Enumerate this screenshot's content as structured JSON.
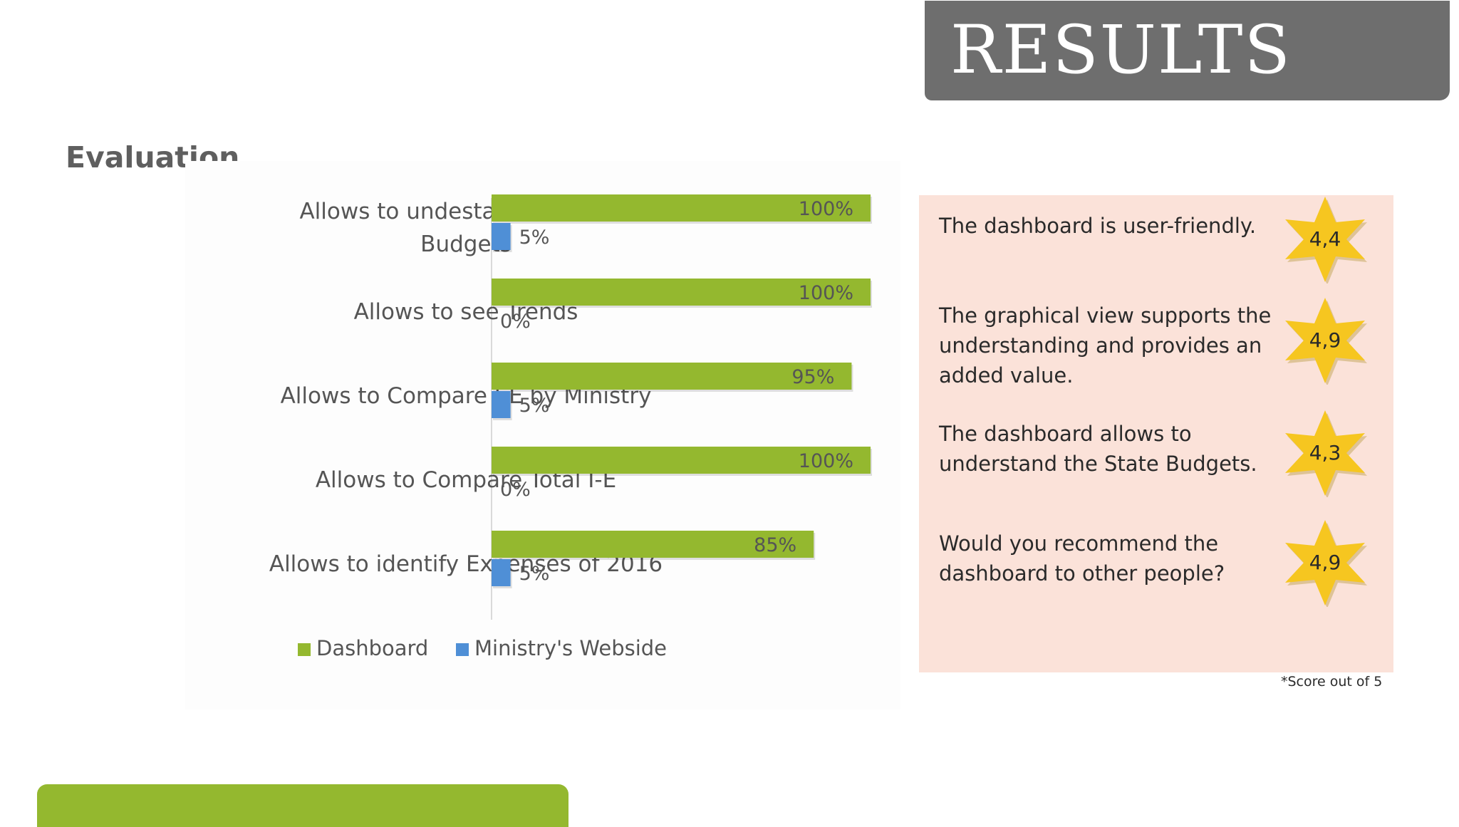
{
  "title": "RESULTS",
  "section_heading": "Evaluation",
  "chart_data": {
    "type": "bar",
    "orientation": "horizontal",
    "categories": [
      [
        "Allows to undestand the State",
        "Budgets"
      ],
      [
        "Allows to see Trends"
      ],
      [
        "Allows to Compare I-E by Ministry"
      ],
      [
        "Allows to Compare Total I-E"
      ],
      [
        "Allows to identify Expenses of 2016"
      ]
    ],
    "series": [
      {
        "name": "Dashboard",
        "color": "#94b82f",
        "values": [
          100,
          100,
          95,
          100,
          85
        ],
        "labels": [
          "100%",
          "100%",
          "95%",
          "100%",
          "85%"
        ]
      },
      {
        "name": "Ministry's Webside",
        "color": "#4f8fd6",
        "values": [
          5,
          0,
          5,
          0,
          5
        ],
        "labels": [
          "5%",
          "0%",
          "5%",
          "0%",
          "5%"
        ]
      }
    ],
    "xlim": [
      0,
      100
    ],
    "grid": false,
    "legend_position": "bottom"
  },
  "scores": [
    {
      "statement": "The dashboard is user-friendly.",
      "score": "4,4"
    },
    {
      "statement": "The graphical view supports the understanding and provides an added value.",
      "score": "4,9"
    },
    {
      "statement": "The dashboard allows to understand the State Budgets.",
      "score": "4,3"
    },
    {
      "statement": "Would you recommend the dashboard to other people?",
      "score": "4,9"
    }
  ],
  "footnote": "*Score out of 5"
}
